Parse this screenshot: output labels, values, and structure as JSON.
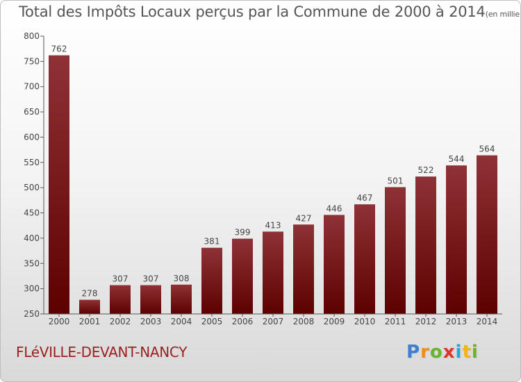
{
  "title": "Total des Impôts Locaux perçus par la Commune de 2000 à 2014",
  "title_unit": "(en milliers d'€)",
  "commune": "FLéVILLE-DEVANT-NANCY",
  "logo": {
    "letters": [
      "P",
      "r",
      "o",
      "x",
      "i",
      "t",
      "i"
    ],
    "colors": [
      "#3f7fd0",
      "#f08c1c",
      "#6ab42d",
      "#e2332b",
      "#2aa7d6",
      "#f3b50e",
      "#6ab42d"
    ]
  },
  "chart_data": {
    "type": "bar",
    "categories": [
      "2000",
      "2001",
      "2002",
      "2003",
      "2004",
      "2005",
      "2006",
      "2007",
      "2008",
      "2009",
      "2010",
      "2011",
      "2012",
      "2013",
      "2014"
    ],
    "values": [
      762,
      278,
      307,
      307,
      308,
      381,
      399,
      413,
      427,
      446,
      467,
      501,
      522,
      544,
      564
    ],
    "ylim": [
      250,
      800
    ],
    "yticks": [
      250,
      300,
      350,
      400,
      450,
      500,
      550,
      600,
      650,
      700,
      750,
      800
    ],
    "bar_color_top": "#8e3236",
    "bar_color_bottom": "#5c0000",
    "grid": false,
    "data_labels": true
  }
}
